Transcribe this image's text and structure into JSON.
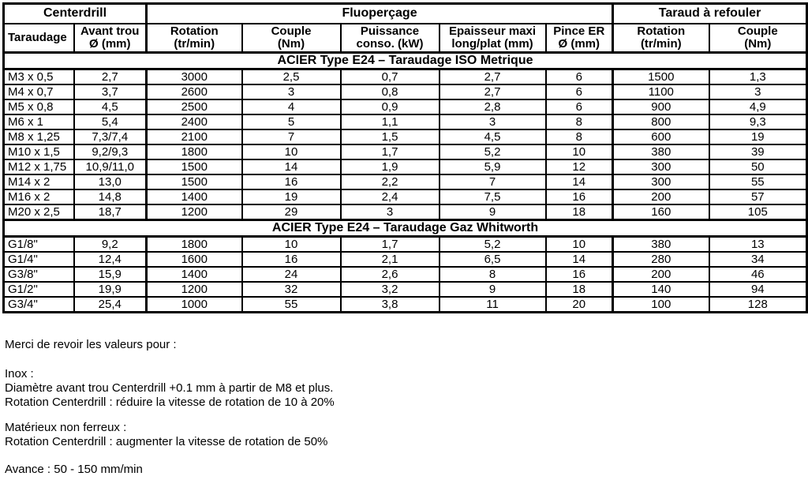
{
  "table": {
    "groups": [
      {
        "label": "Centerdrill",
        "span": 2
      },
      {
        "label": "Fluoperçage",
        "span": 5
      },
      {
        "label": "Taraud à refouler",
        "span": 2
      }
    ],
    "columns": [
      {
        "line1": "Taraudage",
        "line2": ""
      },
      {
        "line1": "Avant trou",
        "line2": "Ø (mm)"
      },
      {
        "line1": "Rotation",
        "line2": "(tr/min)"
      },
      {
        "line1": "Couple",
        "line2": "(Nm)"
      },
      {
        "line1": "Puissance",
        "line2": "conso. (kW)"
      },
      {
        "line1": "Epaisseur maxi",
        "line2": "long/plat (mm)"
      },
      {
        "line1": "Pince ER",
        "line2": "Ø (mm)"
      },
      {
        "line1": "Rotation",
        "line2": "(tr/min)"
      },
      {
        "line1": "Couple",
        "line2": "(Nm)"
      }
    ],
    "sections": [
      {
        "title": "ACIER Type E24 – Taraudage ISO Metrique",
        "rows": [
          [
            "M3 x 0,5",
            "2,7",
            "3000",
            "2,5",
            "0,7",
            "2,7",
            "6",
            "1500",
            "1,3"
          ],
          [
            "M4 x 0,7",
            "3,7",
            "2600",
            "3",
            "0,8",
            "2,7",
            "6",
            "1100",
            "3"
          ],
          [
            "M5 x 0,8",
            "4,5",
            "2500",
            "4",
            "0,9",
            "2,8",
            "6",
            "900",
            "4,9"
          ],
          [
            "M6 x 1",
            "5,4",
            "2400",
            "5",
            "1,1",
            "3",
            "8",
            "800",
            "9,3"
          ],
          [
            "M8 x 1,25",
            "7,3/7,4",
            "2100",
            "7",
            "1,5",
            "4,5",
            "8",
            "600",
            "19"
          ],
          [
            "M10 x 1,5",
            "9,2/9,3",
            "1800",
            "10",
            "1,7",
            "5,2",
            "10",
            "380",
            "39"
          ],
          [
            "M12 x 1,75",
            "10,9/11,0",
            "1500",
            "14",
            "1,9",
            "5,9",
            "12",
            "300",
            "50"
          ],
          [
            "M14 x 2",
            "13,0",
            "1500",
            "16",
            "2,2",
            "7",
            "14",
            "300",
            "55"
          ],
          [
            "M16 x 2",
            "14,8",
            "1400",
            "19",
            "2,4",
            "7,5",
            "16",
            "200",
            "57"
          ],
          [
            "M20 x 2,5",
            "18,7",
            "1200",
            "29",
            "3",
            "9",
            "18",
            "160",
            "105"
          ]
        ]
      },
      {
        "title": "ACIER Type E24 – Taraudage Gaz Whitworth",
        "rows": [
          [
            "G1/8\"",
            "9,2",
            "1800",
            "10",
            "1,7",
            "5,2",
            "10",
            "380",
            "13"
          ],
          [
            "G1/4\"",
            "12,4",
            "1600",
            "16",
            "2,1",
            "6,5",
            "14",
            "280",
            "34"
          ],
          [
            "G3/8\"",
            "15,9",
            "1400",
            "24",
            "2,6",
            "8",
            "16",
            "200",
            "46"
          ],
          [
            "G1/2\"",
            "19,9",
            "1200",
            "32",
            "3,2",
            "9",
            "18",
            "140",
            "94"
          ],
          [
            "G3/4\"",
            "25,4",
            "1000",
            "55",
            "3,8",
            "11",
            "20",
            "100",
            "128"
          ]
        ]
      }
    ]
  },
  "notes": {
    "intro": "Merci de revoir les valeurs pour :",
    "inox_title": "Inox :",
    "inox_line1": "Diamètre avant trou Centerdrill +0.1 mm à partir de M8 et plus.",
    "inox_line2": "Rotation Centerdrill : réduire la vitesse de rotation de 10 à 20%",
    "nonferrous_title": "Matérieux non ferreux :",
    "nonferrous_line1": "Rotation Centerdrill : augmenter la vitesse de rotation de 50%",
    "feed": "Avance : 50 - 150 mm/min"
  },
  "colors": {
    "text": "#000000",
    "background": "#ffffff",
    "border": "#000000"
  }
}
